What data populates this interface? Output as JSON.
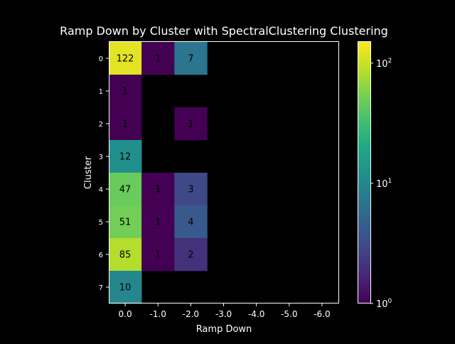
{
  "chart_data": {
    "type": "heatmap",
    "title": "Ramp Down by Cluster with SpectralClustering Clustering",
    "xlabel": "Ramp Down",
    "ylabel": "Cluster",
    "x_categories": [
      "0.0",
      "-1.0",
      "-2.0",
      "-3.0",
      "-4.0",
      "-5.0",
      "-6.0"
    ],
    "y_categories": [
      "0",
      "1",
      "2",
      "3",
      "4",
      "5",
      "6",
      "7"
    ],
    "values": [
      [
        122,
        1,
        7,
        null,
        null,
        null,
        null
      ],
      [
        1,
        null,
        null,
        null,
        null,
        null,
        null
      ],
      [
        1,
        null,
        1,
        null,
        null,
        null,
        null
      ],
      [
        12,
        null,
        null,
        null,
        null,
        null,
        null
      ],
      [
        47,
        1,
        3,
        null,
        null,
        null,
        null
      ],
      [
        51,
        1,
        4,
        null,
        null,
        null,
        null
      ],
      [
        85,
        1,
        2,
        null,
        null,
        null,
        null
      ],
      [
        10,
        null,
        null,
        null,
        null,
        null,
        null
      ]
    ],
    "colorscale": "viridis",
    "color_scale_type": "log",
    "colorbar_range": [
      1,
      150
    ],
    "colorbar_ticks": [
      {
        "value": 1,
        "base": "10",
        "exp": "0"
      },
      {
        "value": 10,
        "base": "10",
        "exp": "1"
      },
      {
        "value": 100,
        "base": "10",
        "exp": "2"
      }
    ],
    "empty_cell_color": "#000000",
    "background_color": "#000000",
    "text_color": "#ffffff",
    "annotation_color": "#000000"
  }
}
